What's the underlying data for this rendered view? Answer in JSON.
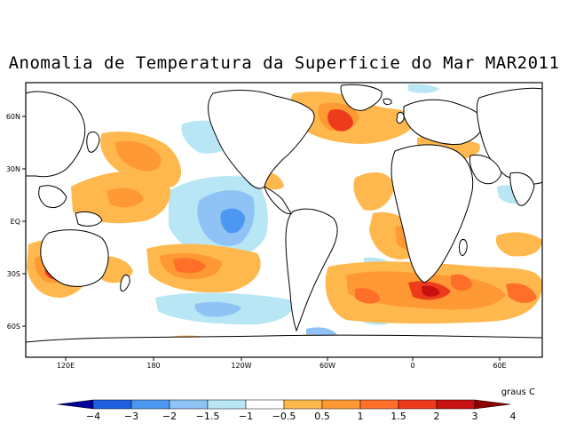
{
  "title": "Anomalia de Temperatura da Superficie do Mar MAR2011",
  "map": {
    "lat_ticks": [
      "60N",
      "30N",
      "EQ",
      "30S",
      "60S"
    ],
    "lon_ticks": [
      "120E",
      "180",
      "120W",
      "60W",
      "0",
      "60E"
    ]
  },
  "legend": {
    "units": "graus C",
    "levels": [
      "−4",
      "−3",
      "−2",
      "−1.5",
      "−1",
      "−0.5",
      "0.5",
      "1",
      "1.5",
      "2",
      "3",
      "4"
    ],
    "colors": [
      "#000099",
      "#1f5fe0",
      "#4c97f0",
      "#8fc3f5",
      "#b8e6f5",
      "#ffffff",
      "#ffb84d",
      "#ff9933",
      "#ff6f2a",
      "#ee3b1c",
      "#c81010",
      "#8a0000"
    ]
  },
  "palette": {
    "frame": "#000000",
    "coast": "#000000",
    "land": "#ffffff"
  }
}
